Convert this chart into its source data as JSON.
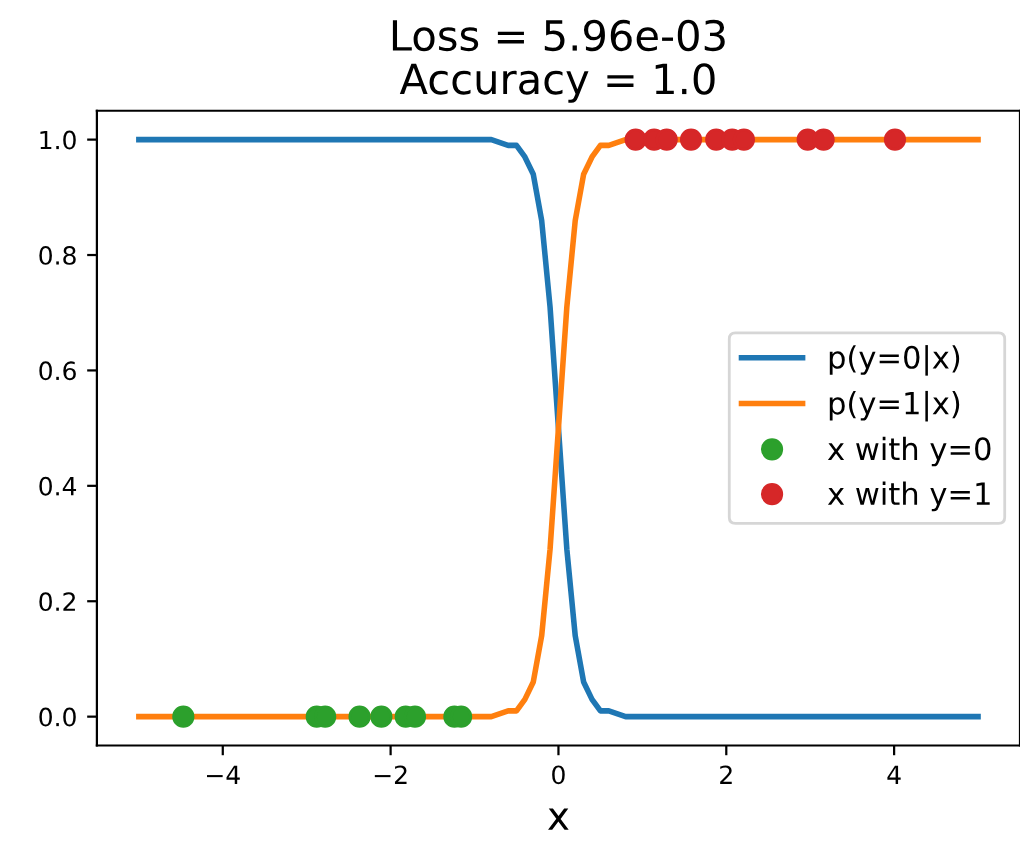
{
  "chart_data": {
    "type": "line",
    "title": "Loss = 5.96e-03\nAccuracy = 1.0",
    "xlabel": "x",
    "xlim": [
      -5.5,
      5.5
    ],
    "xticks": [
      {
        "value": -4,
        "label": "−4"
      },
      {
        "value": -2,
        "label": "−2"
      },
      0,
      2,
      4
    ],
    "ylim": [
      -0.05,
      1.05
    ],
    "yticks": [
      {
        "value": 0,
        "label": "0.0"
      },
      0.2,
      0.4,
      0.6,
      0.8,
      {
        "value": 1,
        "label": "1.0"
      }
    ],
    "grid": false,
    "legend": "right",
    "series": [
      {
        "name": "p(y=0|x)",
        "color": "#1f77b4",
        "x": [
          -5,
          -1,
          -0.8,
          -0.6,
          -0.5,
          -0.4,
          -0.3,
          -0.2,
          -0.1,
          0,
          0.1,
          0.2,
          0.3,
          0.4,
          0.5,
          0.6,
          0.8,
          1,
          5
        ],
        "values": [
          1,
          1,
          1,
          0.99,
          0.99,
          0.97,
          0.94,
          0.86,
          0.71,
          0.5,
          0.29,
          0.14,
          0.06,
          0.03,
          0.01,
          0.01,
          0,
          0,
          0
        ]
      },
      {
        "name": "p(y=1|x)",
        "color": "#ff7f0e",
        "x": [
          -5,
          -1,
          -0.8,
          -0.6,
          -0.5,
          -0.4,
          -0.3,
          -0.2,
          -0.1,
          0,
          0.1,
          0.2,
          0.3,
          0.4,
          0.5,
          0.6,
          0.8,
          1,
          5
        ],
        "values": [
          0,
          0,
          0,
          0.01,
          0.01,
          0.03,
          0.06,
          0.14,
          0.29,
          0.5,
          0.71,
          0.86,
          0.94,
          0.97,
          0.99,
          0.99,
          1,
          1,
          1
        ]
      },
      {
        "name": "x with y=0",
        "color": "#2ca02c",
        "type": "scatter",
        "marker": "circle",
        "x": [
          -4.47,
          -2.88,
          -2.78,
          -2.37,
          -2.11,
          -1.82,
          -1.71,
          -1.24,
          -1.16
        ],
        "values": [
          0,
          0,
          0,
          0,
          0,
          0,
          0,
          0,
          0
        ]
      },
      {
        "name": "x with y=1",
        "color": "#d62728",
        "type": "scatter",
        "marker": "circle",
        "x": [
          0.92,
          1.14,
          1.29,
          1.58,
          1.88,
          2.07,
          2.21,
          2.97,
          3.16,
          4.01
        ],
        "values": [
          1,
          1,
          1,
          1,
          1,
          1,
          1,
          1,
          1,
          1
        ]
      }
    ]
  }
}
